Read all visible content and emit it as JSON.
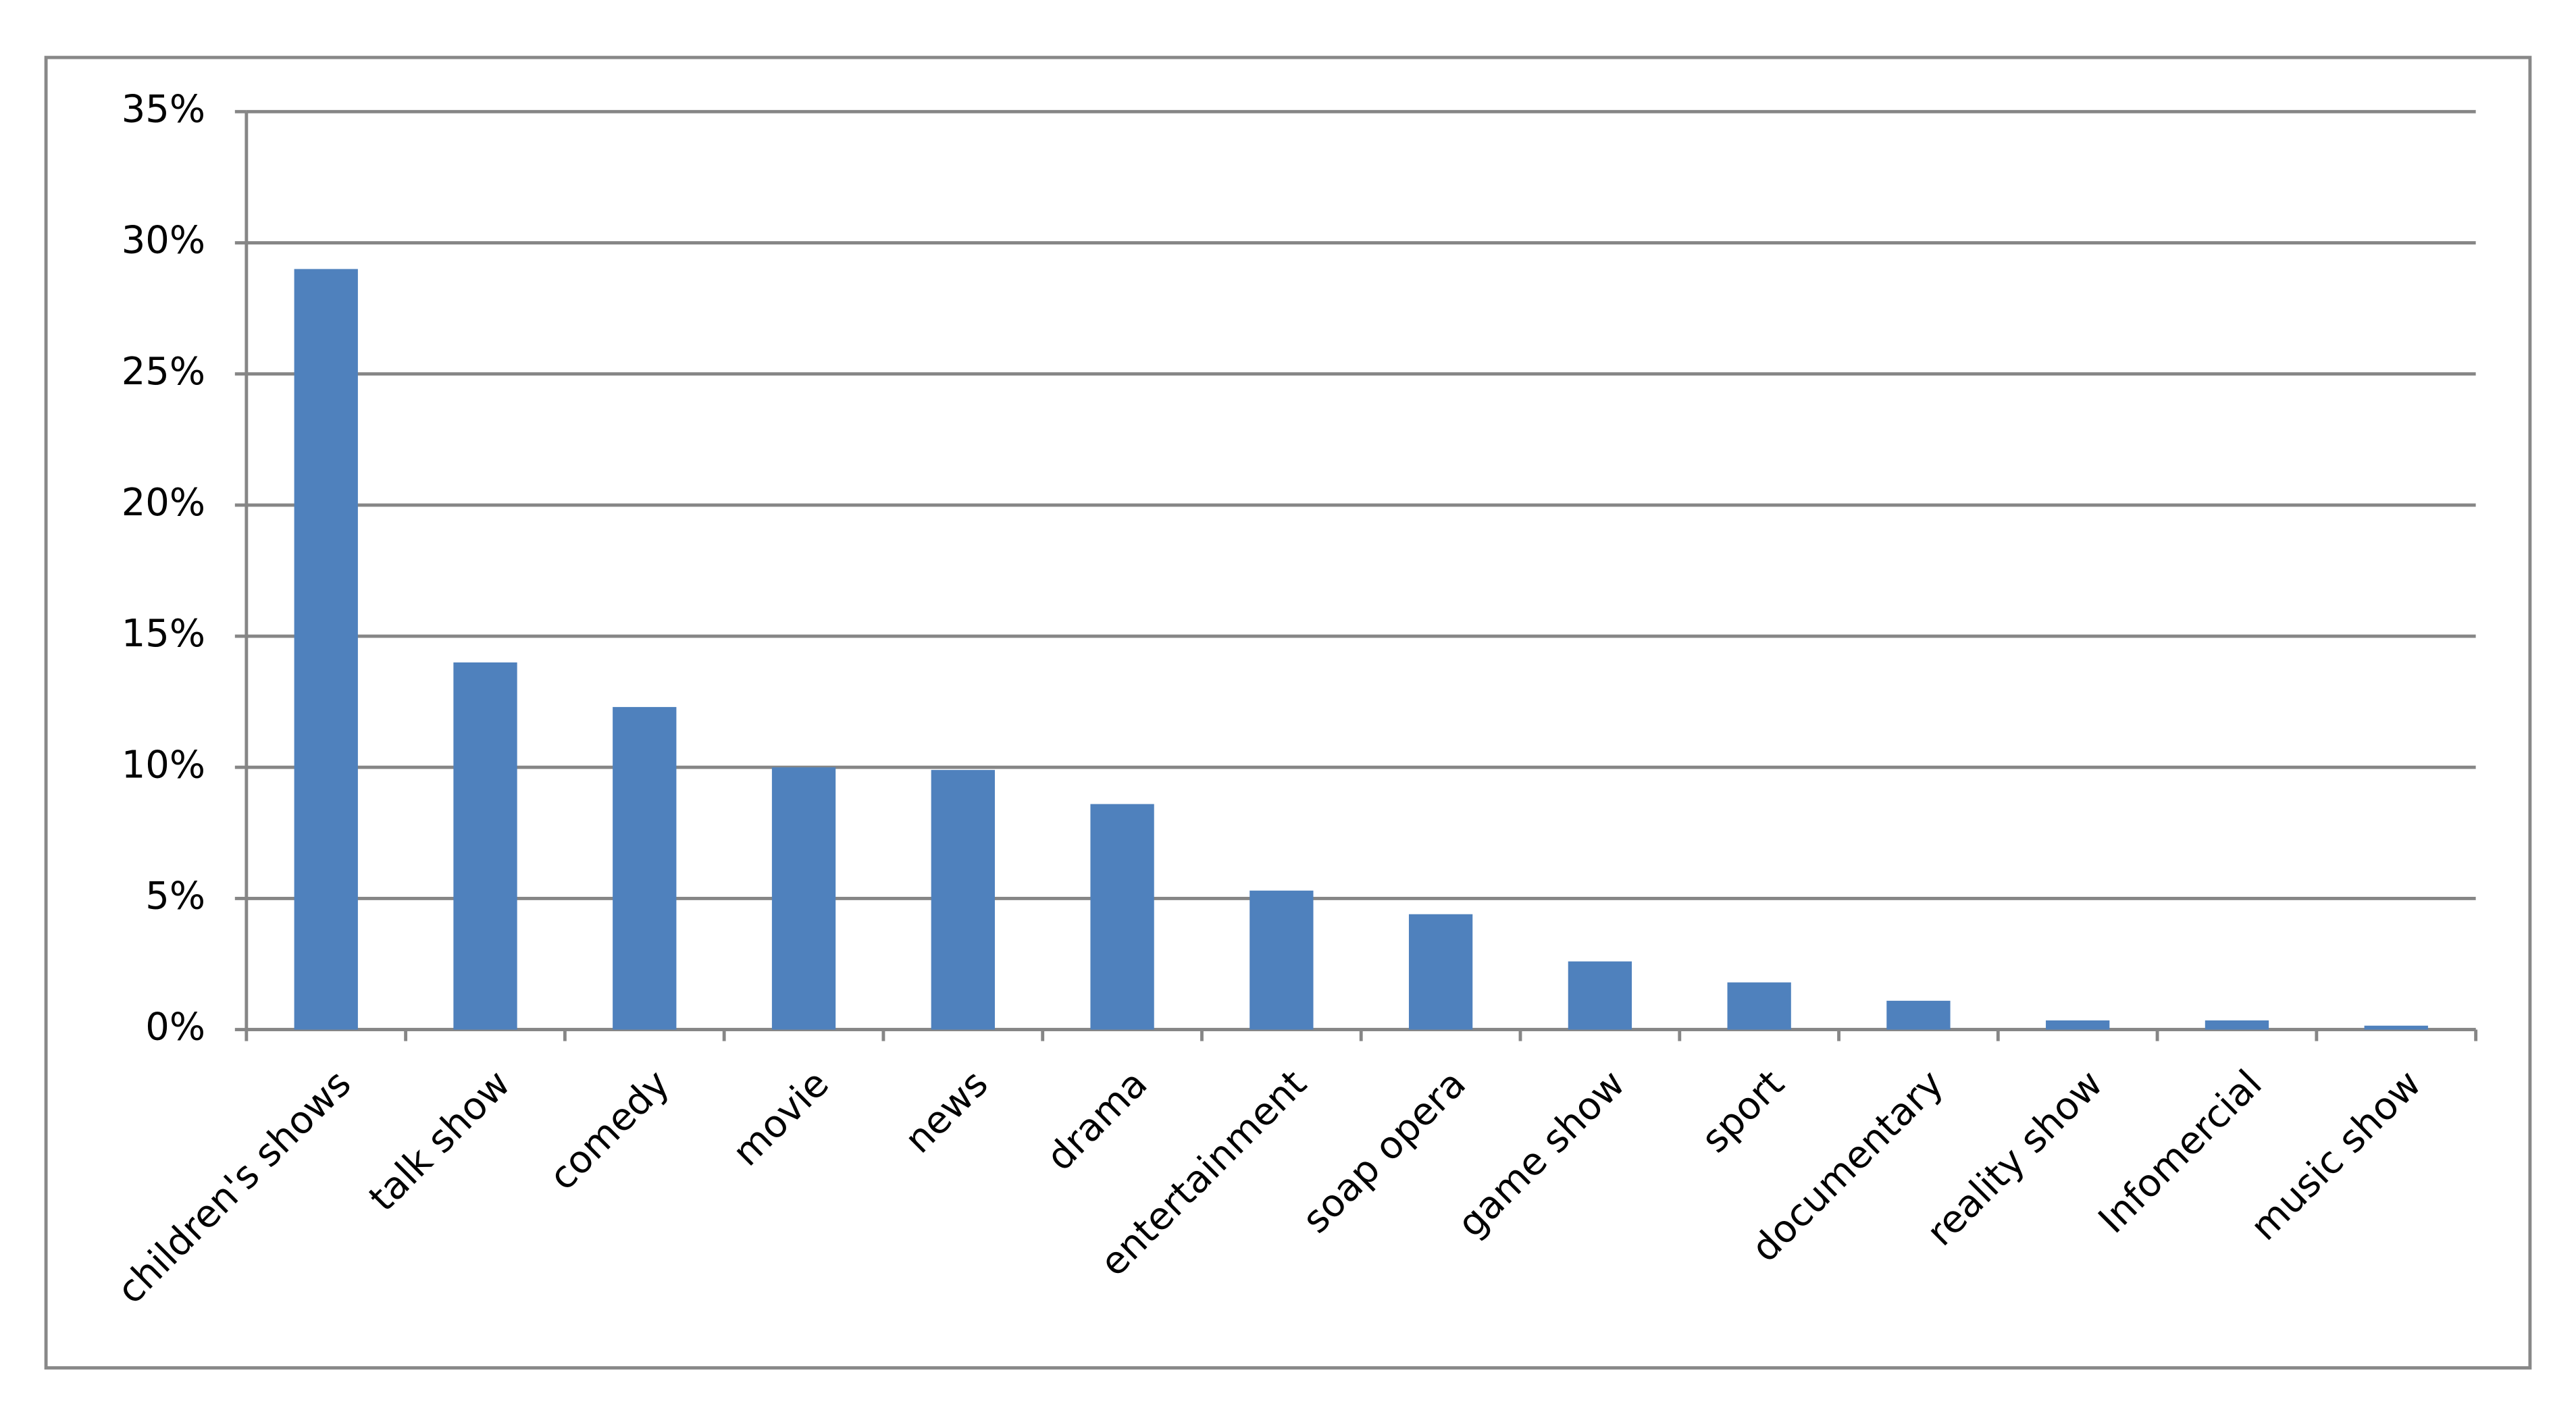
{
  "chart_data": {
    "type": "bar",
    "categories": [
      "children's  shows",
      "talk show",
      "comedy",
      "movie",
      "news",
      "drama",
      "entertainment",
      "soap opera",
      "game show",
      "sport",
      "documentary",
      "reality show",
      "Infomercial",
      "music show"
    ],
    "values": [
      29,
      14,
      12.3,
      10,
      9.9,
      8.6,
      5.3,
      4.4,
      2.6,
      1.8,
      1.1,
      0.35,
      0.35,
      0.15
    ],
    "color": "#4f81bd",
    "ylim": [
      0,
      35
    ],
    "yticks": [
      {
        "value": 0,
        "label": "0%"
      },
      {
        "value": 5,
        "label": "5%"
      },
      {
        "value": 10,
        "label": "10%"
      },
      {
        "value": 15,
        "label": "15%"
      },
      {
        "value": 20,
        "label": "20%"
      },
      {
        "value": 25,
        "label": "25%"
      },
      {
        "value": 30,
        "label": "30%"
      },
      {
        "value": 35,
        "label": "35%"
      }
    ],
    "grid": true
  }
}
